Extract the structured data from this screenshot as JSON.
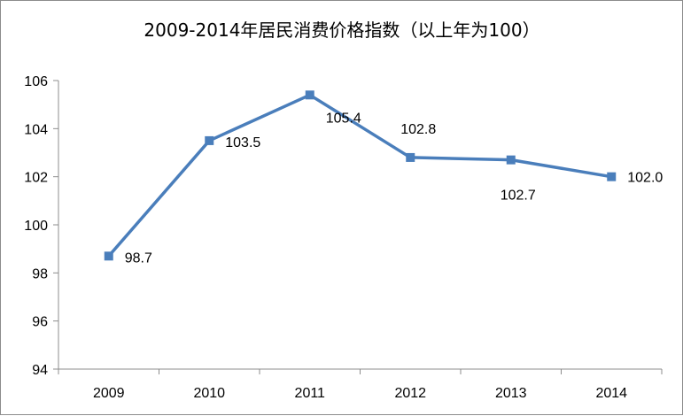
{
  "chart_data": {
    "type": "line",
    "title": "2009-2014年居民消费价格指数（以上年为100）",
    "xlabel": "",
    "ylabel": "",
    "categories": [
      "2009",
      "2010",
      "2011",
      "2012",
      "2013",
      "2014"
    ],
    "series": [
      {
        "values": [
          98.7,
          103.5,
          105.4,
          102.8,
          102.7,
          102.0
        ],
        "data_labels": [
          "98.7",
          "103.5",
          "105.4",
          "102.8",
          "102.7",
          "102.0"
        ],
        "color": "#4a7ebb",
        "marker": "square"
      }
    ],
    "ylim": [
      94,
      106
    ],
    "yticks": [
      94,
      96,
      98,
      100,
      102,
      104,
      106
    ],
    "ytick_labels": [
      "94",
      "96",
      "98",
      "100",
      "102",
      "104",
      "106"
    ],
    "grid": false,
    "legend": "none"
  }
}
